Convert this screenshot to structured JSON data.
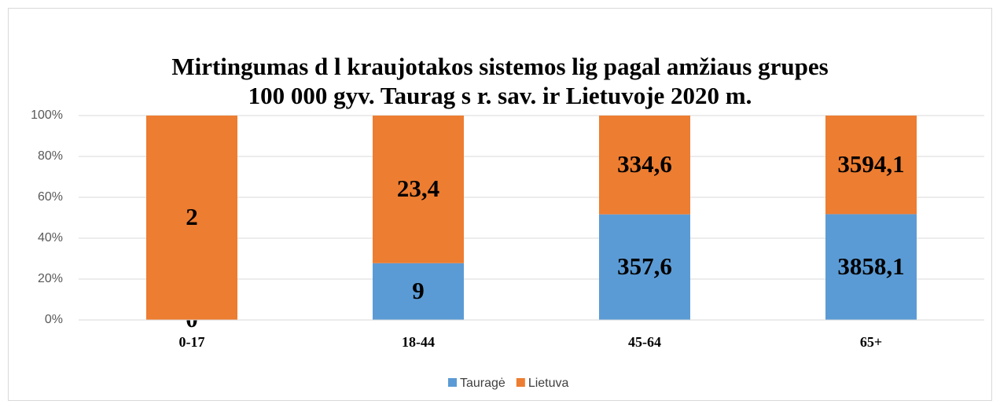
{
  "chart_data": {
    "type": "bar",
    "stacked": "percent",
    "title": [
      "Mirtingumas d l kraujotakos sistemos lig   pagal amžiaus grupes",
      "100 000 gyv. Taurag s r. sav. ir Lietuvoje 2020 m."
    ],
    "categories": [
      "0-17",
      "18-44",
      "45-64",
      "65+"
    ],
    "series": [
      {
        "name": "Tauragė",
        "color": "#5b9bd5",
        "values": [
          0,
          9,
          357.6,
          3858.1
        ],
        "value_labels": [
          "0",
          "9",
          "357,6",
          "3858,1"
        ]
      },
      {
        "name": "Lietuva",
        "color": "#ed7d31",
        "values": [
          2,
          23.4,
          334.6,
          3594.1
        ],
        "value_labels": [
          "2",
          "23,4",
          "334,6",
          "3594,1"
        ]
      }
    ],
    "ylim": [
      0,
      100
    ],
    "yticks": [
      {
        "value": 0,
        "label": "0%"
      },
      {
        "value": 20,
        "label": "20%"
      },
      {
        "value": 40,
        "label": "40%"
      },
      {
        "value": 60,
        "label": "60%"
      },
      {
        "value": 80,
        "label": "80%"
      },
      {
        "value": 100,
        "label": "100%"
      }
    ],
    "grid": true,
    "legend": "bottom"
  }
}
